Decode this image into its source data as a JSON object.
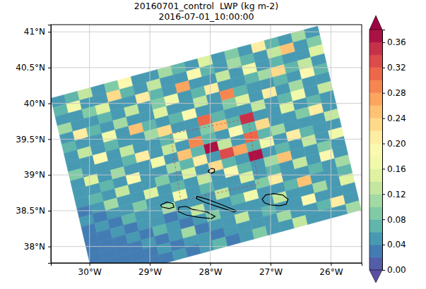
{
  "chart_data": {
    "type": "heatmap",
    "title": "20160701_control  LWP (kg m-2)",
    "subtitle": "2016-07-01_10:00:00",
    "xlim": [
      -30.64,
      -25.49
    ],
    "ylim": [
      37.77,
      41.1
    ],
    "xticks": [
      {
        "value": -30,
        "label": "30°W"
      },
      {
        "value": -29,
        "label": "29°W"
      },
      {
        "value": -28,
        "label": "28°W"
      },
      {
        "value": -27,
        "label": "27°W"
      },
      {
        "value": -26,
        "label": "26°W"
      }
    ],
    "yticks": [
      {
        "value": 38,
        "label": "38°N"
      },
      {
        "value": 38.5,
        "label": "38.5°N"
      },
      {
        "value": 39,
        "label": "39°N"
      },
      {
        "value": 39.5,
        "label": "39.5°N"
      },
      {
        "value": 40,
        "label": "40°N"
      },
      {
        "value": 40.5,
        "label": "40.5°N"
      },
      {
        "value": 41,
        "label": "41°N"
      }
    ],
    "grid": true,
    "domain_corners": [
      [
        -30.64,
        40.07
      ],
      [
        -26.22,
        41.08
      ],
      [
        -25.5,
        38.51
      ],
      [
        -29.92,
        37.5
      ]
    ],
    "inner_domain": [
      [
        -28.66,
        39.57
      ],
      [
        -27.37,
        39.79
      ],
      [
        -27.2,
        38.87
      ],
      [
        -28.49,
        38.64
      ]
    ],
    "coastlines": [
      [
        [
          -28.03,
          39.06
        ],
        [
          -27.98,
          39.09
        ],
        [
          -27.93,
          39.08
        ],
        [
          -27.93,
          39.04
        ],
        [
          -27.99,
          39.02
        ],
        [
          -28.03,
          39.04
        ]
      ],
      [
        [
          -27.14,
          38.66
        ],
        [
          -27.08,
          38.72
        ],
        [
          -26.95,
          38.74
        ],
        [
          -26.8,
          38.72
        ],
        [
          -26.71,
          38.66
        ],
        [
          -26.74,
          38.59
        ],
        [
          -26.85,
          38.57
        ],
        [
          -27.0,
          38.58
        ],
        [
          -27.1,
          38.61
        ]
      ],
      [
        [
          -28.22,
          38.7
        ],
        [
          -28.05,
          38.66
        ],
        [
          -27.8,
          38.58
        ],
        [
          -27.57,
          38.5
        ],
        [
          -27.6,
          38.48
        ],
        [
          -27.85,
          38.55
        ],
        [
          -28.1,
          38.62
        ],
        [
          -28.23,
          38.67
        ]
      ],
      [
        [
          -28.52,
          38.55
        ],
        [
          -28.4,
          38.56
        ],
        [
          -28.3,
          38.52
        ],
        [
          -28.05,
          38.48
        ],
        [
          -27.92,
          38.42
        ],
        [
          -27.98,
          38.39
        ],
        [
          -28.2,
          38.41
        ],
        [
          -28.4,
          38.44
        ],
        [
          -28.53,
          38.49
        ]
      ],
      [
        [
          -28.82,
          38.58
        ],
        [
          -28.72,
          38.62
        ],
        [
          -28.62,
          38.6
        ],
        [
          -28.6,
          38.55
        ],
        [
          -28.68,
          38.53
        ],
        [
          -28.8,
          38.55
        ]
      ]
    ],
    "cells": [
      [
        0.04,
        0.06,
        0.12,
        0.04,
        0.08,
        0.18,
        0.05,
        0.04,
        0.1,
        0.06,
        0.04,
        0.14,
        0.05,
        0.08,
        0.04,
        0.2,
        0.06,
        0.04,
        0.1,
        0.05
      ],
      [
        0.06,
        0.16,
        0.04,
        0.05,
        0.22,
        0.06,
        0.04,
        0.12,
        0.05,
        0.04,
        0.18,
        0.06,
        0.04,
        0.1,
        0.06,
        0.05,
        0.12,
        0.24,
        0.05,
        0.08
      ],
      [
        0.05,
        0.04,
        0.08,
        0.14,
        0.05,
        0.04,
        0.2,
        0.06,
        0.04,
        0.26,
        0.05,
        0.04,
        0.12,
        0.05,
        0.16,
        0.04,
        0.06,
        0.05,
        0.04,
        0.14
      ],
      [
        0.1,
        0.05,
        0.04,
        0.06,
        0.04,
        0.12,
        0.05,
        0.08,
        0.16,
        0.05,
        0.06,
        0.2,
        0.05,
        0.04,
        0.06,
        0.1,
        0.22,
        0.06,
        0.12,
        0.05
      ],
      [
        0.04,
        0.2,
        0.06,
        0.04,
        0.1,
        0.05,
        0.04,
        0.14,
        0.05,
        0.04,
        0.12,
        0.05,
        0.28,
        0.06,
        0.04,
        0.05,
        0.06,
        0.04,
        0.18,
        0.06
      ],
      [
        0.06,
        0.04,
        0.05,
        0.16,
        0.05,
        0.24,
        0.06,
        0.04,
        0.06,
        0.18,
        0.05,
        0.04,
        0.08,
        0.14,
        0.05,
        0.2,
        0.04,
        0.1,
        0.05,
        0.04
      ],
      [
        0.05,
        0.12,
        0.04,
        0.06,
        0.04,
        0.05,
        0.1,
        0.22,
        0.05,
        0.04,
        0.3,
        0.06,
        0.05,
        0.04,
        0.12,
        0.05,
        0.06,
        0.16,
        0.04,
        0.12
      ],
      [
        0.04,
        0.05,
        0.18,
        0.05,
        0.12,
        0.04,
        0.05,
        0.06,
        0.16,
        0.05,
        0.08,
        0.24,
        0.06,
        0.34,
        0.05,
        0.04,
        0.14,
        0.05,
        0.06,
        0.05
      ],
      [
        0.08,
        0.04,
        0.05,
        0.04,
        0.06,
        0.2,
        0.05,
        0.12,
        0.05,
        0.28,
        0.06,
        0.05,
        0.18,
        0.06,
        0.22,
        0.05,
        0.04,
        0.08,
        0.2,
        0.04
      ],
      [
        0.04,
        0.14,
        0.05,
        0.1,
        0.04,
        0.05,
        0.16,
        0.05,
        0.24,
        0.06,
        0.36,
        0.12,
        0.05,
        0.3,
        0.06,
        0.1,
        0.05,
        0.04,
        0.05,
        0.12
      ],
      [
        0.05,
        0.04,
        0.06,
        0.04,
        0.18,
        0.05,
        0.04,
        0.1,
        0.06,
        0.2,
        0.05,
        0.32,
        0.26,
        0.06,
        0.16,
        0.05,
        0.2,
        0.06,
        0.04,
        0.05
      ],
      [
        0.04,
        0.06,
        0.04,
        0.12,
        0.05,
        0.04,
        0.08,
        0.05,
        0.14,
        0.05,
        0.22,
        0.06,
        0.05,
        0.36,
        0.05,
        0.06,
        0.04,
        0.12,
        0.05,
        0.16
      ],
      [
        0.03,
        0.04,
        0.1,
        0.04,
        0.05,
        0.14,
        0.04,
        0.06,
        0.05,
        0.12,
        0.05,
        0.18,
        0.06,
        0.05,
        0.1,
        0.24,
        0.05,
        0.04,
        0.08,
        0.05
      ],
      [
        0.04,
        0.03,
        0.04,
        0.05,
        0.08,
        0.04,
        0.05,
        0.16,
        0.04,
        0.06,
        0.05,
        0.04,
        0.14,
        0.05,
        0.06,
        0.05,
        0.12,
        0.05,
        0.18,
        0.04
      ],
      [
        0.03,
        0.04,
        0.03,
        0.06,
        0.04,
        0.05,
        0.1,
        0.04,
        0.05,
        0.04,
        0.12,
        0.05,
        0.04,
        0.08,
        0.2,
        0.05,
        0.04,
        0.06,
        0.05,
        0.1
      ],
      [
        0.02,
        0.03,
        0.04,
        0.03,
        0.05,
        0.04,
        0.03,
        0.05,
        0.12,
        0.04,
        0.05,
        0.06,
        0.16,
        0.05,
        0.04,
        0.06,
        0.24,
        0.05,
        0.04,
        0.06
      ],
      [
        0.03,
        0.02,
        0.03,
        0.04,
        0.03,
        0.06,
        0.04,
        0.03,
        0.04,
        0.08,
        0.04,
        0.05,
        0.04,
        0.05,
        0.12,
        0.05,
        0.04,
        0.1,
        0.05,
        0.14
      ],
      [
        0.02,
        0.03,
        0.02,
        0.03,
        0.04,
        0.03,
        0.04,
        0.1,
        0.03,
        0.04,
        0.05,
        0.12,
        0.04,
        0.06,
        0.05,
        0.04,
        0.18,
        0.05,
        0.04,
        0.05
      ],
      [
        0.03,
        0.02,
        0.03,
        0.02,
        0.03,
        0.04,
        0.03,
        0.04,
        0.05,
        0.03,
        0.04,
        0.05,
        0.04,
        0.05,
        0.1,
        0.05,
        0.04,
        0.06,
        0.2,
        0.04
      ],
      [
        0.02,
        0.03,
        0.02,
        0.03,
        0.02,
        0.03,
        0.04,
        0.03,
        0.04,
        0.06,
        0.03,
        0.04,
        0.08,
        0.04,
        0.05,
        0.12,
        0.05,
        0.04,
        0.05,
        0.1
      ]
    ],
    "colorbar": {
      "lim": [
        0,
        0.38
      ],
      "levels": [
        0,
        0.02,
        0.04,
        0.06,
        0.08,
        0.1,
        0.12,
        0.14,
        0.16,
        0.18,
        0.2,
        0.22,
        0.24,
        0.26,
        0.28,
        0.3,
        0.32,
        0.34,
        0.36,
        0.38
      ],
      "ticks": [
        {
          "value": 0,
          "label": "0.00"
        },
        0.04,
        0.08,
        0.12,
        0.16,
        {
          "value": 0.2,
          "label": "0.20"
        },
        0.24,
        0.28,
        0.32,
        0.36
      ]
    }
  }
}
